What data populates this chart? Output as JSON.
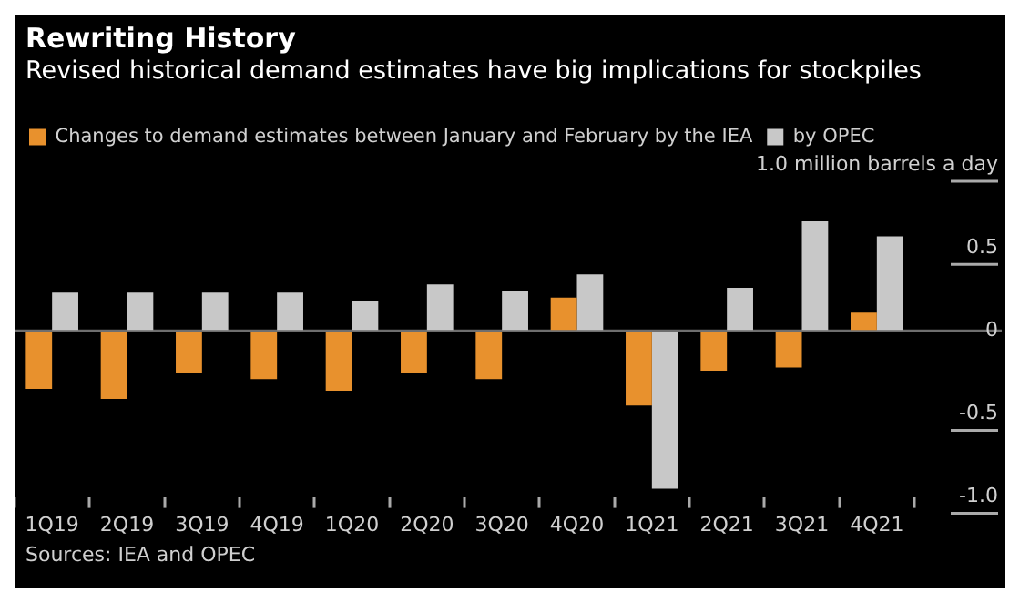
{
  "chart_data": {
    "type": "bar",
    "title": "Rewriting History",
    "subtitle": "Revised historical demand estimates have big implications for stockpiles",
    "categories": [
      "1Q19",
      "2Q19",
      "3Q19",
      "4Q19",
      "1Q20",
      "2Q20",
      "3Q20",
      "4Q20",
      "1Q21",
      "2Q21",
      "3Q21",
      "4Q21"
    ],
    "series": [
      {
        "name": "Changes to demand estimates between January and February by the IEA",
        "color": "#e8912d",
        "values": [
          -0.35,
          -0.41,
          -0.25,
          -0.29,
          -0.36,
          -0.25,
          -0.29,
          0.2,
          -0.45,
          -0.24,
          -0.22,
          0.11
        ]
      },
      {
        "name": "by OPEC",
        "color": "#c8c8c8",
        "values": [
          0.23,
          0.23,
          0.23,
          0.23,
          0.18,
          0.28,
          0.24,
          0.34,
          -0.95,
          0.26,
          0.66,
          0.57
        ]
      }
    ],
    "ylim": [
      -1.0,
      1.0
    ],
    "yticks": [
      {
        "value": -1,
        "label": "-1.0"
      },
      -0.5,
      0,
      0.5,
      {
        "value": 1,
        "label": "1.0 million barrels a day"
      }
    ],
    "ref_lines": [
      {
        "axis": "y",
        "value": 0,
        "color": "#6e6e6e"
      }
    ],
    "grid": false,
    "legend": "top left",
    "annotations": [
      "Sources: IEA and OPEC"
    ]
  }
}
